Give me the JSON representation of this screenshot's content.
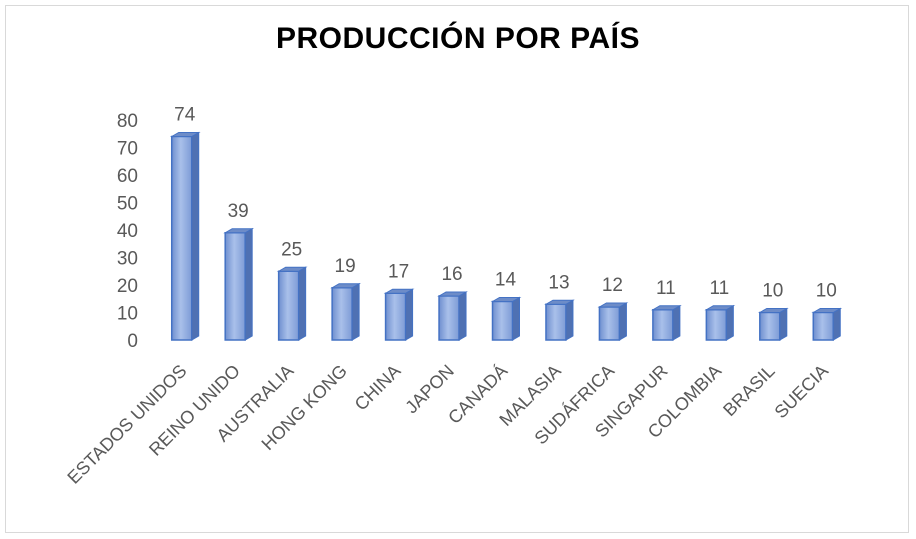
{
  "chart_data": {
    "type": "bar",
    "title": "PRODUCCIÓN POR PAÍS",
    "categories": [
      "ESTADOS UNIDOS",
      "REINO UNIDO",
      "AUSTRALIA",
      "HONG KONG",
      "CHINA",
      "JAPON",
      "CANADÁ",
      "MALASIA",
      "SUDÁFRICA",
      "SINGAPUR",
      "COLOMBIA",
      "BRASIL",
      "SUECIA"
    ],
    "values": [
      74,
      39,
      25,
      19,
      17,
      16,
      14,
      13,
      12,
      11,
      11,
      10,
      10
    ],
    "ylim": [
      0,
      80
    ],
    "yticks": [
      0,
      10,
      20,
      30,
      40,
      50,
      60,
      70,
      80
    ],
    "xlabel": "",
    "ylabel": "",
    "grid": false,
    "bar_color": "#8faadc",
    "bar_edge_color": "#4472c4"
  }
}
